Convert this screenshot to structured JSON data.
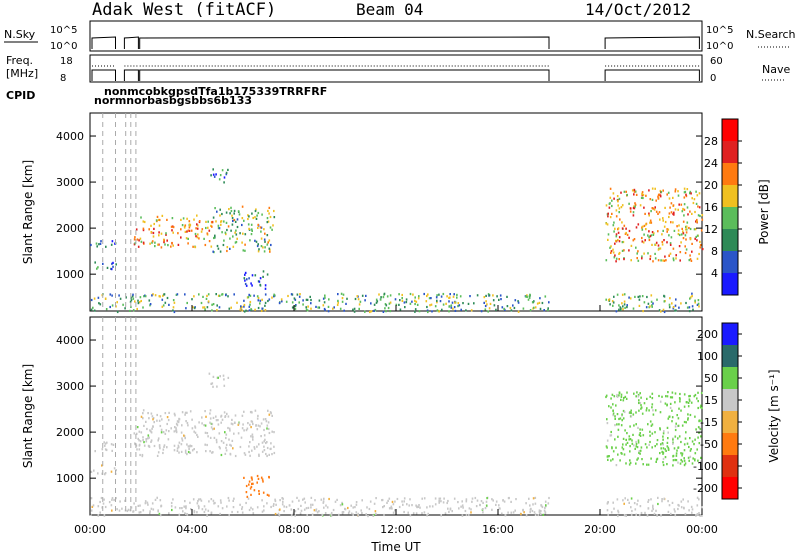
{
  "header": {
    "title": "Adak West (fitACF)",
    "beam": "Beam 04",
    "date": "14/Oct/2012"
  },
  "top_panels": {
    "nsky_label": "N.Sky",
    "nsearch_label": "N.Search",
    "nsky_ticks": [
      "10^5",
      "10^0"
    ],
    "freq_label_1": "Freq.",
    "freq_label_2": "[MHz]",
    "freq_ticks": [
      "18",
      "8"
    ],
    "nave_label": "Nave",
    "nave_ticks": [
      "60",
      "0"
    ],
    "cpid_label": "CPID",
    "cpid_text_row1": "nonmcobkgpsdTfa1b175339TRRFRF",
    "cpid_text_row2": "normnorbasbgsbbs6b133"
  },
  "chart_data": [
    {
      "type": "heatmap",
      "name": "power",
      "title": "",
      "xlabel": "Time UT",
      "ylabel": "Slant Range [km]",
      "xlim": [
        "00:00",
        "24:00"
      ],
      "x_ticks": [
        "00:00",
        "04:00",
        "08:00",
        "12:00",
        "16:00",
        "20:00",
        "00:00"
      ],
      "ylim": [
        200,
        4500
      ],
      "y_ticks": [
        1000,
        2000,
        3000,
        4000
      ],
      "colorbar_label": "Power [dB]",
      "colorbar_ticks": [
        4,
        8,
        12,
        16,
        20,
        24,
        28
      ],
      "colorbar_range": [
        0,
        32
      ],
      "colors": [
        "#1a1aff",
        "#2a55c8",
        "#2e8a57",
        "#5bbd5b",
        "#f0c020",
        "#ff7a10",
        "#e02020",
        "#ff0000"
      ],
      "data_gaps_hours": [
        [
          18.0,
          20.2
        ]
      ],
      "scatter_regions": [
        {
          "t": [
            0.0,
            1.0
          ],
          "range": [
            1100,
            1300
          ],
          "level": 8
        },
        {
          "t": [
            0.0,
            1.0
          ],
          "range": [
            1600,
            1800
          ],
          "level": 8
        },
        {
          "t": [
            1.7,
            4.8
          ],
          "range": [
            1600,
            2300
          ],
          "level": 20
        },
        {
          "t": [
            4.8,
            7.2
          ],
          "range": [
            1500,
            2500
          ],
          "level": 14
        },
        {
          "t": [
            6.0,
            7.0
          ],
          "range": [
            700,
            1100
          ],
          "level": 6
        },
        {
          "t": [
            4.6,
            5.4
          ],
          "range": [
            3000,
            3300
          ],
          "level": 8
        },
        {
          "t": [
            20.2,
            24.0
          ],
          "range": [
            1300,
            2900
          ],
          "level": 20
        },
        {
          "t": [
            0.0,
            18.0
          ],
          "range": [
            200,
            600
          ],
          "level": 12
        },
        {
          "t": [
            20.2,
            24.0
          ],
          "range": [
            200,
            600
          ],
          "level": 12
        }
      ]
    },
    {
      "type": "heatmap",
      "name": "velocity",
      "title": "",
      "xlabel": "Time UT",
      "ylabel": "Slant Range [km]",
      "xlim": [
        "00:00",
        "24:00"
      ],
      "x_ticks": [
        "00:00",
        "04:00",
        "08:00",
        "12:00",
        "16:00",
        "20:00",
        "00:00"
      ],
      "ylim": [
        200,
        4500
      ],
      "y_ticks": [
        1000,
        2000,
        3000,
        4000
      ],
      "colorbar_label": "Velocity [m s⁻¹]",
      "colorbar_ticks": [
        200,
        100,
        50,
        15,
        -15,
        -50,
        -100,
        -200
      ],
      "colors": [
        "#1a1aff",
        "#2a6a6a",
        "#6ad04a",
        "#c8c8c8",
        "#f0b040",
        "#ff7a10",
        "#e03010",
        "#ff0000"
      ],
      "data_gaps_hours": [
        [
          18.0,
          20.2
        ]
      ],
      "scatter_regions": [
        {
          "t": [
            0.0,
            1.0
          ],
          "range": [
            1100,
            1300
          ],
          "level": 0
        },
        {
          "t": [
            0.0,
            1.0
          ],
          "range": [
            1600,
            1800
          ],
          "level": 0
        },
        {
          "t": [
            1.7,
            7.2
          ],
          "range": [
            1500,
            2500
          ],
          "level": 0
        },
        {
          "t": [
            6.0,
            7.0
          ],
          "range": [
            600,
            1100
          ],
          "level": -80
        },
        {
          "t": [
            4.6,
            5.4
          ],
          "range": [
            3000,
            3300
          ],
          "level": 0
        },
        {
          "t": [
            20.2,
            24.0
          ],
          "range": [
            1300,
            2900
          ],
          "level": 20
        },
        {
          "t": [
            0.0,
            18.0
          ],
          "range": [
            200,
            600
          ],
          "level": 0
        },
        {
          "t": [
            20.2,
            24.0
          ],
          "range": [
            200,
            600
          ],
          "level": 0
        }
      ]
    }
  ]
}
